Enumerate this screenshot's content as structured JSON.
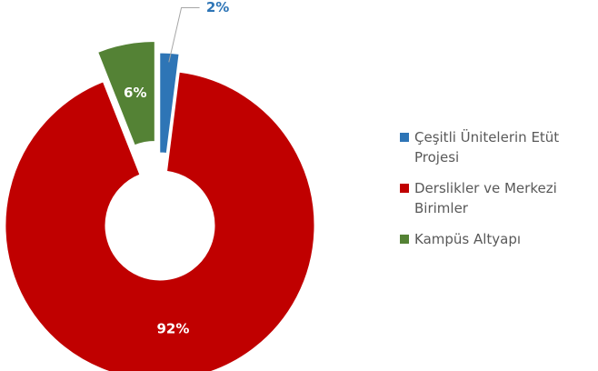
{
  "chart_data": {
    "type": "donut",
    "categories": [
      "Çeşitli Ünitelerin Etüt Projesi",
      "Derslikler ve Merkezi Birimler",
      "Kampüs Altyapı"
    ],
    "values": [
      2,
      92,
      6
    ],
    "value_labels": [
      "2%",
      "92%",
      "6%"
    ],
    "colors": [
      "#2e75b6",
      "#c00000",
      "#548235"
    ],
    "legend": "right"
  }
}
